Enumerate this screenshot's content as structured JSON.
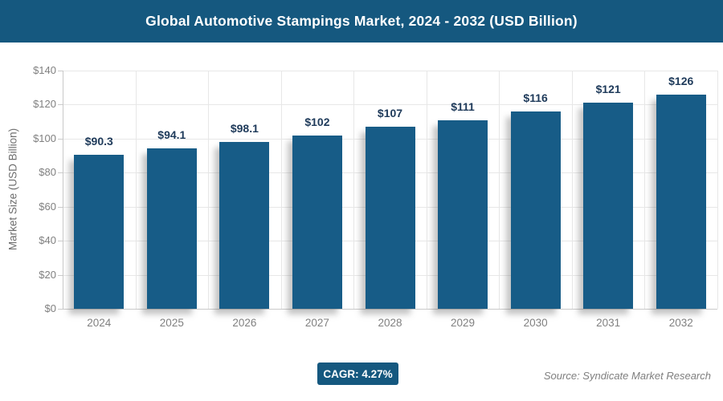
{
  "header": {
    "title": "Global Automotive Stampings Market, 2024 - 2032 (USD Billion)"
  },
  "colors": {
    "header_bg": "#15587F",
    "bar_fill": "#175C87",
    "value_label_text": "#1E3A5A",
    "axis_text": "#808080",
    "gridline": "#E7E7E7"
  },
  "chart_data": {
    "type": "bar",
    "title": "Global Automotive Stampings Market, 2024 - 2032 (USD Billion)",
    "categories": [
      "2024",
      "2025",
      "2026",
      "2027",
      "2028",
      "2029",
      "2030",
      "2031",
      "2032"
    ],
    "values": [
      90.3,
      94.1,
      98.1,
      102,
      107,
      111,
      116,
      121,
      126
    ],
    "bar_labels": [
      "$90.3",
      "$94.1",
      "$98.1",
      "$102",
      "$107",
      "$111",
      "$116",
      "$121",
      "$126"
    ],
    "xlabel": "",
    "ylabel": "Market Size (USD Billion)",
    "ylim": [
      0,
      140
    ],
    "ytick_step": 20,
    "ytick_labels": [
      "$0",
      "$20",
      "$40",
      "$60",
      "$80",
      "$100",
      "$120",
      "$140"
    ],
    "grid": "on",
    "legend": "none"
  },
  "footer": {
    "cagr_label": "CAGR: 4.27%",
    "source": "Source: Syndicate Market Research"
  }
}
